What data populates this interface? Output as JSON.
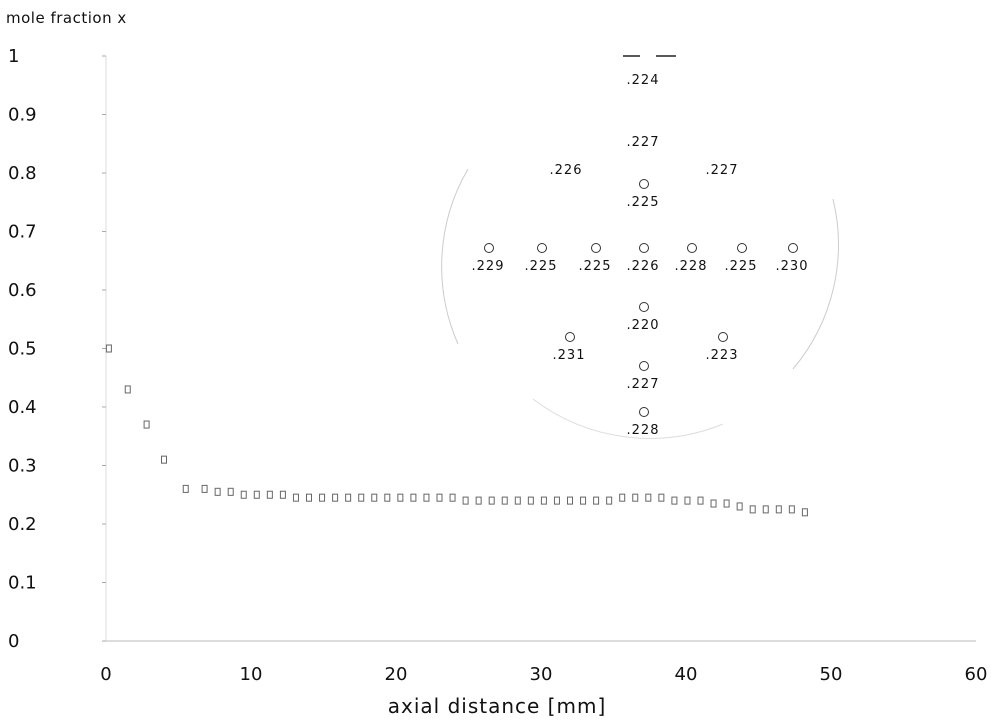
{
  "chart_data": {
    "type": "scatter",
    "title": "",
    "xlabel": "axial distance [mm]",
    "ylabel": "mole fraction x",
    "xlim": [
      0,
      60
    ],
    "ylim": [
      0,
      1
    ],
    "xticks": [
      "0",
      "10",
      "20",
      "30",
      "40",
      "50",
      "60"
    ],
    "yticks": [
      "0",
      "0.1",
      "0.2",
      "0.3",
      "0.4",
      "0.5",
      "0.6",
      "0.7",
      "0.8",
      "0.9",
      "1"
    ],
    "grid": false,
    "series": [
      {
        "marker": "error-bar",
        "x": [
          0.2,
          1.5,
          2.8,
          4.0,
          5.5,
          6.8,
          7.7,
          8.6,
          9.5,
          10.4,
          11.3,
          12.2,
          13.1,
          14.0,
          14.9,
          15.8,
          16.7,
          17.6,
          18.5,
          19.4,
          20.3,
          21.2,
          22.1,
          23.0,
          23.9,
          24.8,
          25.7,
          26.6,
          27.5,
          28.4,
          29.3,
          30.2,
          31.1,
          32.0,
          32.9,
          33.8,
          34.7,
          35.6,
          36.5,
          37.4,
          38.3,
          39.2,
          40.1,
          41.0,
          41.9,
          42.8,
          43.7,
          44.6,
          45.5,
          46.4,
          47.3,
          48.2
        ],
        "y": [
          0.5,
          0.43,
          0.37,
          0.31,
          0.26,
          0.26,
          0.255,
          0.255,
          0.25,
          0.25,
          0.25,
          0.25,
          0.245,
          0.245,
          0.245,
          0.245,
          0.245,
          0.245,
          0.245,
          0.245,
          0.245,
          0.245,
          0.245,
          0.245,
          0.245,
          0.24,
          0.24,
          0.24,
          0.24,
          0.24,
          0.24,
          0.24,
          0.24,
          0.24,
          0.24,
          0.24,
          0.24,
          0.245,
          0.245,
          0.245,
          0.245,
          0.24,
          0.24,
          0.24,
          0.235,
          0.235,
          0.23,
          0.225,
          0.225,
          0.225,
          0.225,
          0.22
        ],
        "errors": [
          0.01,
          0.012,
          0.012,
          0.012,
          0.012,
          0.012,
          0.012,
          0.012,
          0.012,
          0.012,
          0.012,
          0.012,
          0.012,
          0.012,
          0.012,
          0.012,
          0.012,
          0.012,
          0.012,
          0.012,
          0.012,
          0.012,
          0.012,
          0.012,
          0.012,
          0.012,
          0.012,
          0.012,
          0.012,
          0.012,
          0.012,
          0.012,
          0.012,
          0.012,
          0.012,
          0.012,
          0.012,
          0.012,
          0.012,
          0.012,
          0.012,
          0.012,
          0.012,
          0.012,
          0.012,
          0.012,
          0.012,
          0.012,
          0.012,
          0.012,
          0.012,
          0.012
        ]
      }
    ],
    "inset": {
      "description": "cross-section measurement positions",
      "points": [
        {
          "label": ".224",
          "row": "top"
        },
        {
          "label": ".227",
          "row": "upper"
        },
        {
          "label": ".226",
          "row": "upper-left"
        },
        {
          "label": ".227",
          "row": "upper-right"
        },
        {
          "label": ".225",
          "row": "upper-center"
        },
        {
          "label": ".229",
          "row": "middle"
        },
        {
          "label": ".225",
          "row": "middle"
        },
        {
          "label": ".225",
          "row": "middle"
        },
        {
          "label": ".226",
          "row": "middle"
        },
        {
          "label": ".228",
          "row": "middle"
        },
        {
          "label": ".225",
          "row": "middle"
        },
        {
          "label": ".230",
          "row": "middle"
        },
        {
          "label": ".220",
          "row": "lower-center"
        },
        {
          "label": ".231",
          "row": "lower-left"
        },
        {
          "label": ".223",
          "row": "lower-right"
        },
        {
          "label": ".227",
          "row": "lower"
        },
        {
          "label": ".228",
          "row": "bottom"
        }
      ]
    }
  }
}
